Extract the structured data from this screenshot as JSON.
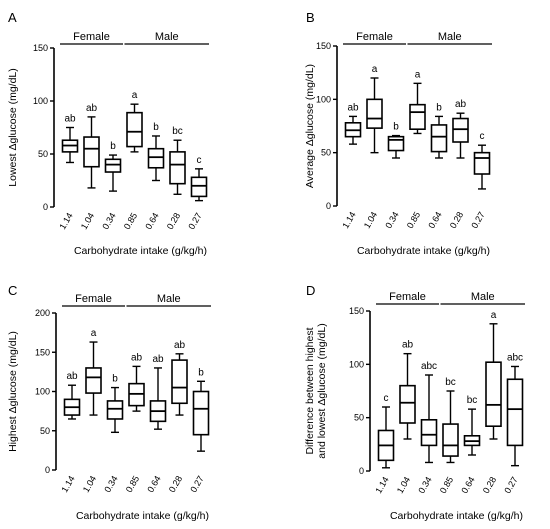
{
  "chart_data": [
    {
      "type": "box",
      "panel_label": "A",
      "groups": [
        {
          "label": "Female",
          "categories": [
            0,
            1,
            2
          ]
        },
        {
          "label": "Male",
          "categories": [
            3,
            4,
            5,
            6
          ]
        }
      ],
      "categories": [
        "1.14",
        "1.04",
        "0.34",
        "0.85",
        "0.64",
        "0.28",
        "0.27"
      ],
      "xlabel": "Carbohydrate intake (g/kg/h)",
      "ylabel": "Lowest Δglucose (mg/dL)",
      "ylim": [
        0,
        150
      ],
      "yticks": [
        0,
        50,
        100,
        150
      ],
      "boxes": [
        {
          "min": 42,
          "q1": 52,
          "median": 58,
          "q3": 63,
          "max": 75
        },
        {
          "min": 18,
          "q1": 38,
          "median": 55,
          "q3": 66,
          "max": 85
        },
        {
          "min": 15,
          "q1": 33,
          "median": 40,
          "q3": 45,
          "max": 49
        },
        {
          "min": 52,
          "q1": 57,
          "median": 71,
          "q3": 89,
          "max": 97
        },
        {
          "min": 25,
          "q1": 37,
          "median": 47,
          "q3": 55,
          "max": 67
        },
        {
          "min": 12,
          "q1": 22,
          "median": 40,
          "q3": 52,
          "max": 63
        },
        {
          "min": 6,
          "q1": 10,
          "median": 20,
          "q3": 28,
          "max": 36
        }
      ],
      "sig_labels": [
        "ab",
        "ab",
        "b",
        "a",
        "b",
        "bc",
        "c"
      ]
    },
    {
      "type": "box",
      "panel_label": "B",
      "groups": [
        {
          "label": "Female",
          "categories": [
            0,
            1,
            2
          ]
        },
        {
          "label": "Male",
          "categories": [
            3,
            4,
            5,
            6
          ]
        }
      ],
      "categories": [
        "1.14",
        "1.04",
        "0.34",
        "0.85",
        "0.64",
        "0.28",
        "0.27"
      ],
      "xlabel": "Carbohydrate intake (g/kg/h)",
      "ylabel": "Average Δglucose (mg/dL)",
      "ylim": [
        0,
        150
      ],
      "yticks": [
        0,
        50,
        100,
        150
      ],
      "boxes": [
        {
          "min": 58,
          "q1": 65,
          "median": 71,
          "q3": 78,
          "max": 84
        },
        {
          "min": 50,
          "q1": 73,
          "median": 82,
          "q3": 100,
          "max": 120
        },
        {
          "min": 45,
          "q1": 52,
          "median": 62,
          "q3": 65,
          "max": 66
        },
        {
          "min": 68,
          "q1": 72,
          "median": 88,
          "q3": 95,
          "max": 115
        },
        {
          "min": 45,
          "q1": 51,
          "median": 65,
          "q3": 76,
          "max": 84
        },
        {
          "min": 45,
          "q1": 60,
          "median": 72,
          "q3": 82,
          "max": 87
        },
        {
          "min": 16,
          "q1": 30,
          "median": 45,
          "q3": 50,
          "max": 57
        }
      ],
      "sig_labels": [
        "ab",
        "a",
        "b",
        "a",
        "b",
        "ab",
        "c"
      ]
    },
    {
      "type": "box",
      "panel_label": "C",
      "groups": [
        {
          "label": "Female",
          "categories": [
            0,
            1,
            2
          ]
        },
        {
          "label": "Male",
          "categories": [
            3,
            4,
            5,
            6
          ]
        }
      ],
      "categories": [
        "1.14",
        "1.04",
        "0.34",
        "0.85",
        "0.64",
        "0.28",
        "0.27"
      ],
      "xlabel": "Carbohydrate intake (g/kg/h)",
      "ylabel": "Highest Δglucose (mg/dL)",
      "ylim": [
        0,
        200
      ],
      "yticks": [
        0,
        50,
        100,
        150,
        200
      ],
      "boxes": [
        {
          "min": 65,
          "q1": 70,
          "median": 80,
          "q3": 90,
          "max": 108
        },
        {
          "min": 70,
          "q1": 98,
          "median": 118,
          "q3": 130,
          "max": 163
        },
        {
          "min": 48,
          "q1": 65,
          "median": 78,
          "q3": 88,
          "max": 105
        },
        {
          "min": 75,
          "q1": 82,
          "median": 97,
          "q3": 110,
          "max": 132
        },
        {
          "min": 52,
          "q1": 62,
          "median": 75,
          "q3": 88,
          "max": 130
        },
        {
          "min": 70,
          "q1": 85,
          "median": 105,
          "q3": 140,
          "max": 148
        },
        {
          "min": 24,
          "q1": 45,
          "median": 78,
          "q3": 100,
          "max": 113
        }
      ],
      "sig_labels": [
        "ab",
        "a",
        "b",
        "ab",
        "ab",
        "ab",
        "b"
      ]
    },
    {
      "type": "box",
      "panel_label": "D",
      "groups": [
        {
          "label": "Female",
          "categories": [
            0,
            1,
            2
          ]
        },
        {
          "label": "Male",
          "categories": [
            3,
            4,
            5,
            6
          ]
        }
      ],
      "categories": [
        "1.14",
        "1.04",
        "0.34",
        "0.85",
        "0.64",
        "0.28",
        "0.27"
      ],
      "xlabel": "Carbohydrate intake (g/kg/h)",
      "ylabel": "Difference between highest and lowest Δglucose (mg/dL)",
      "ylabel_lines": [
        "Difference between highest",
        "and lowest Δglucose (mg/dL)"
      ],
      "ylim": [
        0,
        150
      ],
      "yticks": [
        0,
        50,
        100,
        150
      ],
      "boxes": [
        {
          "min": 3,
          "q1": 10,
          "median": 24,
          "q3": 38,
          "max": 60
        },
        {
          "min": 30,
          "q1": 45,
          "median": 64,
          "q3": 80,
          "max": 110
        },
        {
          "min": 8,
          "q1": 24,
          "median": 34,
          "q3": 48,
          "max": 90
        },
        {
          "min": 8,
          "q1": 14,
          "median": 24,
          "q3": 44,
          "max": 75
        },
        {
          "min": 15,
          "q1": 24,
          "median": 28,
          "q3": 33,
          "max": 58
        },
        {
          "min": 30,
          "q1": 42,
          "median": 62,
          "q3": 102,
          "max": 138
        },
        {
          "min": 5,
          "q1": 24,
          "median": 58,
          "q3": 86,
          "max": 98
        }
      ],
      "sig_labels": [
        "c",
        "ab",
        "abc",
        "bc",
        "bc",
        "a",
        "abc"
      ]
    }
  ]
}
